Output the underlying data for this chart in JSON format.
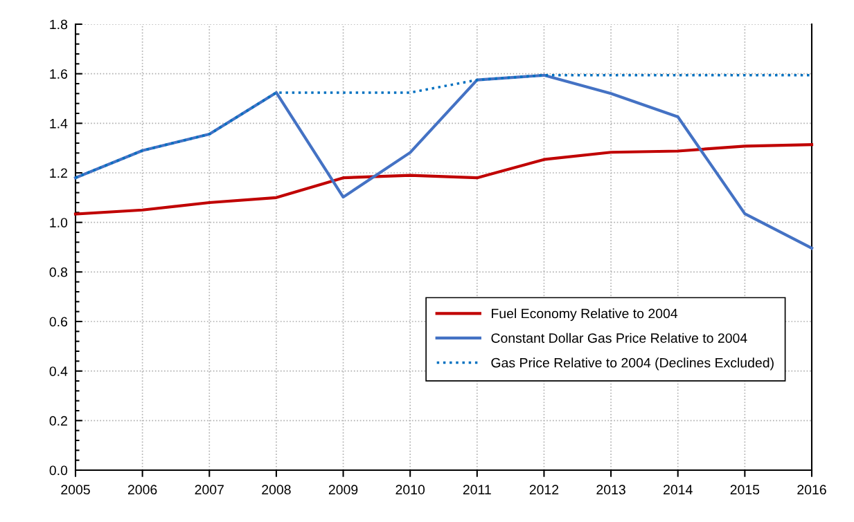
{
  "chart_data": {
    "type": "line",
    "x": [
      2005,
      2006,
      2007,
      2008,
      2009,
      2010,
      2011,
      2012,
      2013,
      2014,
      2015,
      2016
    ],
    "series": [
      {
        "name": "Fuel Economy Relative to 2004",
        "color": "#c00000",
        "line_style": "solid",
        "values": [
          1.034,
          1.05,
          1.08,
          1.1,
          1.18,
          1.19,
          1.18,
          1.254,
          1.283,
          1.288,
          1.308,
          1.314
        ]
      },
      {
        "name": "Constant Dollar Gas Price Relative to 2004",
        "color": "#4472c4",
        "line_style": "solid",
        "values": [
          1.18,
          1.29,
          1.356,
          1.524,
          1.102,
          1.282,
          1.575,
          1.594,
          1.52,
          1.426,
          1.035,
          0.896
        ]
      },
      {
        "name": "Gas Price Relative to 2004 (Declines Excluded)",
        "color": "#0070c0",
        "line_style": "dotted",
        "values": [
          1.18,
          1.29,
          1.356,
          1.524,
          1.524,
          1.524,
          1.575,
          1.594,
          1.594,
          1.594,
          1.594,
          1.594
        ]
      }
    ],
    "xlim": [
      2005,
      2016
    ],
    "xticks": [
      2005,
      2006,
      2007,
      2008,
      2009,
      2010,
      2011,
      2012,
      2013,
      2014,
      2015,
      2016
    ],
    "ylim": [
      0.0,
      1.8
    ],
    "yticks": [
      {
        "value": 0.0,
        "label": "0.0"
      },
      {
        "value": 0.2,
        "label": "0.2"
      },
      {
        "value": 0.4,
        "label": "0.4"
      },
      {
        "value": 0.6,
        "label": "0.6"
      },
      {
        "value": 0.8,
        "label": "0.8"
      },
      {
        "value": 1.0,
        "label": "1.0"
      },
      {
        "value": 1.2,
        "label": "1.2"
      },
      {
        "value": 1.4,
        "label": "1.4"
      },
      {
        "value": 1.6,
        "label": "1.6"
      },
      {
        "value": 1.8,
        "label": "1.8"
      }
    ],
    "grid": true,
    "legend": "bottom",
    "marker": "none"
  }
}
